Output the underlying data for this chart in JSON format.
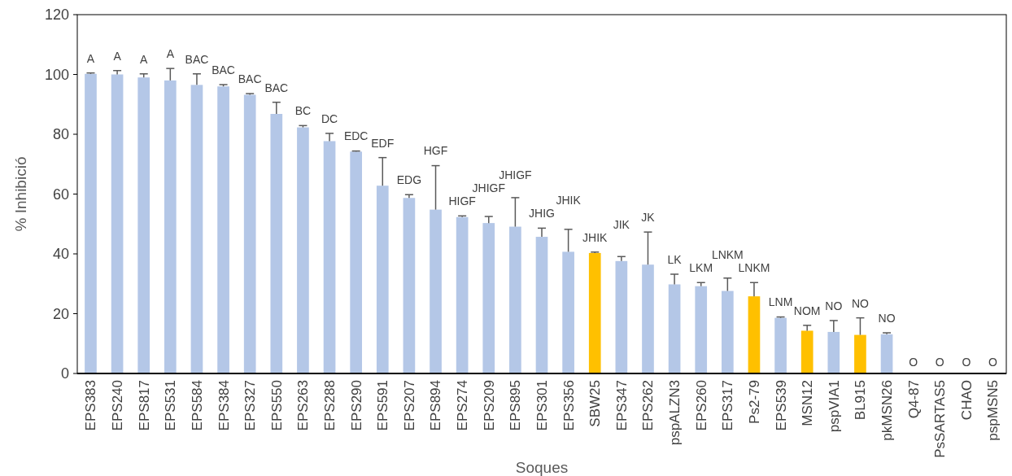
{
  "chart_data": {
    "type": "bar",
    "xlabel": "Soques",
    "ylabel": "% Inhibició",
    "categories": [
      "EPS383",
      "EPS240",
      "EPS817",
      "EPS531",
      "EPS584",
      "EPS384",
      "EPS327",
      "EPS550",
      "EPS263",
      "EPS288",
      "EPS290",
      "EPS591",
      "EPS207",
      "EPS894",
      "EPS274",
      "EPS209",
      "EPS895",
      "EPS301",
      "EPS356",
      "SBW25",
      "EPS347",
      "EPS262",
      "pspALZN3",
      "EPS260",
      "EPS317",
      "Ps2-79",
      "EPS539",
      "MSN12",
      "pspVIA1",
      "BL915",
      "pkMSN26",
      "Q4-87",
      "PsSARTAS5",
      "CHAO",
      "pspMSN5"
    ],
    "values": [
      100.2,
      100,
      99,
      98,
      96.5,
      96,
      93.2,
      86.8,
      82.3,
      77.7,
      74.2,
      62.8,
      58.7,
      54.8,
      52.3,
      50.3,
      49.1,
      45.7,
      40.7,
      40.3,
      37.6,
      36.4,
      29.8,
      29.2,
      27.6,
      25.8,
      18.6,
      14.3,
      13.9,
      12.9,
      13.1,
      0,
      0,
      0,
      0
    ],
    "errors": [
      [
        100.2,
        100.5
      ],
      [
        100,
        101.3
      ],
      [
        99,
        100.2
      ],
      [
        98,
        102
      ],
      [
        96.5,
        100.2
      ],
      [
        96,
        96.6
      ],
      [
        93.2,
        93.6
      ],
      [
        86.8,
        90.7
      ],
      [
        82.3,
        82.9
      ],
      [
        77.7,
        80.3
      ],
      [
        74.2,
        74.4
      ],
      [
        62.8,
        72.2
      ],
      [
        58.7,
        59.8
      ],
      [
        54.8,
        69.5
      ],
      [
        52.3,
        52.7
      ],
      [
        50.3,
        52.5
      ],
      [
        49.1,
        58.8
      ],
      [
        45.7,
        48.6
      ],
      [
        40.7,
        48.2
      ],
      [
        40.3,
        40.6
      ],
      [
        37.6,
        39.1
      ],
      [
        36.4,
        47.3
      ],
      [
        29.8,
        33.2
      ],
      [
        29.2,
        30.4
      ],
      [
        27.6,
        31.9
      ],
      [
        25.8,
        30.4
      ],
      [
        18.6,
        18.9
      ],
      [
        14.3,
        16.1
      ],
      [
        13.9,
        17.7
      ],
      [
        12.9,
        18.6
      ],
      [
        13.1,
        13.6
      ],
      null,
      null,
      null,
      null
    ],
    "colors": [
      "#b4c7e7",
      "#b4c7e7",
      "#b4c7e7",
      "#b4c7e7",
      "#b4c7e7",
      "#b4c7e7",
      "#b4c7e7",
      "#b4c7e7",
      "#b4c7e7",
      "#b4c7e7",
      "#b4c7e7",
      "#b4c7e7",
      "#b4c7e7",
      "#b4c7e7",
      "#b4c7e7",
      "#b4c7e7",
      "#b4c7e7",
      "#b4c7e7",
      "#b4c7e7",
      "#ffc000",
      "#b4c7e7",
      "#b4c7e7",
      "#b4c7e7",
      "#b4c7e7",
      "#b4c7e7",
      "#ffc000",
      "#b4c7e7",
      "#ffc000",
      "#b4c7e7",
      "#ffc000",
      "#b4c7e7",
      "#b4c7e7",
      "#b4c7e7",
      "#b4c7e7",
      "#b4c7e7"
    ],
    "ylim": [
      0,
      120
    ],
    "yticks": [
      0,
      20,
      40,
      60,
      80,
      100,
      120
    ],
    "annotations": [
      "A",
      "A",
      "A",
      "A",
      "BAC",
      "BAC",
      "BAC",
      "BAC",
      "BC",
      "DC",
      "EDC",
      "EDF",
      "EDG",
      "HGF",
      "HIGF",
      "JHIGF",
      "JHIGF",
      "JHIG",
      "JHIK",
      "JHIK",
      "JIK",
      "JK",
      "LK",
      "LKM",
      "LNKM",
      "LNKM",
      "LNM",
      "NOM",
      "NO",
      "NO",
      "NO",
      "O",
      "O",
      "O",
      "O"
    ],
    "grid": false
  }
}
